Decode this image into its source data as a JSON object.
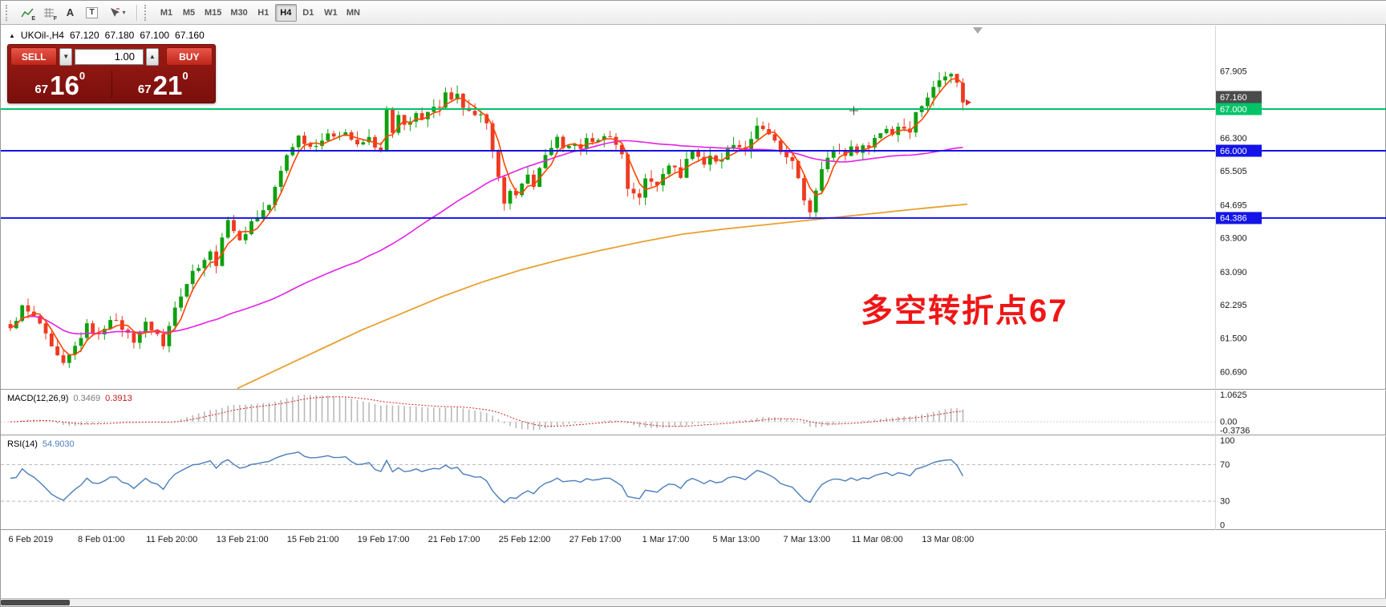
{
  "toolbar": {
    "icons": [
      {
        "name": "indicators-icon",
        "badge": "E"
      },
      {
        "name": "grid-icon",
        "badge": "F"
      },
      {
        "name": "label-icon",
        "glyph": "A"
      },
      {
        "name": "text-icon",
        "glyph": "T"
      },
      {
        "name": "line-tools-icon",
        "dropdown": "▾"
      }
    ],
    "timeframes": [
      "M1",
      "M5",
      "M15",
      "M30",
      "H1",
      "H4",
      "D1",
      "W1",
      "MN"
    ],
    "active_timeframe": "H4"
  },
  "chart_header": {
    "collapse_icon": "▲",
    "symbol": "UKOil-,H4",
    "open": "67.120",
    "high": "67.180",
    "low": "67.100",
    "close": "67.160"
  },
  "trade_panel": {
    "sell_label": "SELL",
    "buy_label": "BUY",
    "volume": "1.00",
    "volume_down_glyph": "▼",
    "volume_up_glyph": "▲",
    "sell_price_base": "67",
    "sell_price_big": "16",
    "sell_price_sup": "0",
    "buy_price_base": "67",
    "buy_price_big": "21",
    "buy_price_sup": "0"
  },
  "annotation": {
    "text": "多空转折点67",
    "color": "#f01616"
  },
  "macd_panel": {
    "name": "MACD(12,26,9)",
    "value_main": "0.3469",
    "value_signal": "0.3913",
    "axis_labels": [
      "1.0625",
      "0.00",
      "-0.3736"
    ],
    "axis_values": [
      1.0625,
      0,
      -0.3736
    ]
  },
  "rsi_panel": {
    "name": "RSI(14)",
    "value": "54.9030",
    "axis_labels": [
      "100",
      "70",
      "30",
      "0"
    ],
    "axis_values": [
      100,
      70,
      30,
      0
    ],
    "levels": [
      70,
      30
    ]
  },
  "chart_data": {
    "type": "candlestick",
    "symbol": "UKOil-",
    "timeframe": "H4",
    "last_ohlc": {
      "open": 67.12,
      "high": 67.18,
      "low": 67.1,
      "close": 67.16
    },
    "bars": 163,
    "visible_price_range": [
      60.3,
      68.95
    ],
    "close_keyframes": [
      [
        0,
        61.7
      ],
      [
        2,
        62.25
      ],
      [
        4,
        62.0
      ],
      [
        5,
        61.85
      ],
      [
        7,
        61.25
      ],
      [
        9,
        60.85
      ],
      [
        11,
        61.3
      ],
      [
        13,
        61.8
      ],
      [
        15,
        61.55
      ],
      [
        17,
        62.0
      ],
      [
        19,
        61.75
      ],
      [
        21,
        61.45
      ],
      [
        23,
        61.85
      ],
      [
        25,
        61.6
      ],
      [
        26,
        61.3
      ],
      [
        28,
        62.3
      ],
      [
        31,
        63.1
      ],
      [
        34,
        63.55
      ],
      [
        35,
        63.3
      ],
      [
        37,
        64.4
      ],
      [
        39,
        63.8
      ],
      [
        41,
        64.3
      ],
      [
        44,
        64.7
      ],
      [
        47,
        65.9
      ],
      [
        49,
        66.35
      ],
      [
        51,
        66.1
      ],
      [
        54,
        66.35
      ],
      [
        57,
        66.45
      ],
      [
        59,
        66.1
      ],
      [
        61,
        66.3
      ],
      [
        63,
        65.95
      ],
      [
        64,
        67.0
      ],
      [
        65,
        66.4
      ],
      [
        66,
        66.8
      ],
      [
        67,
        66.6
      ],
      [
        69,
        66.9
      ],
      [
        70,
        66.7
      ],
      [
        71,
        66.9
      ],
      [
        73,
        67.1
      ],
      [
        74,
        67.45
      ],
      [
        75,
        67.2
      ],
      [
        76,
        67.4
      ],
      [
        77,
        67.0
      ],
      [
        79,
        66.8
      ],
      [
        80,
        66.9
      ],
      [
        81,
        66.6
      ],
      [
        83,
        65.3
      ],
      [
        84,
        64.8
      ],
      [
        85,
        65.1
      ],
      [
        86,
        64.9
      ],
      [
        88,
        65.4
      ],
      [
        89,
        65.2
      ],
      [
        91,
        65.9
      ],
      [
        93,
        66.3
      ],
      [
        94,
        66.0
      ],
      [
        96,
        66.2
      ],
      [
        97,
        66.0
      ],
      [
        98,
        66.3
      ],
      [
        100,
        66.2
      ],
      [
        101,
        66.4
      ],
      [
        103,
        66.2
      ],
      [
        104,
        65.9
      ],
      [
        105,
        65.1
      ],
      [
        107,
        64.9
      ],
      [
        108,
        65.3
      ],
      [
        110,
        65.2
      ],
      [
        111,
        65.5
      ],
      [
        112,
        65.7
      ],
      [
        114,
        65.4
      ],
      [
        115,
        65.8
      ],
      [
        116,
        66.0
      ],
      [
        118,
        65.7
      ],
      [
        119,
        65.9
      ],
      [
        120,
        65.7
      ],
      [
        122,
        66.0
      ],
      [
        123,
        66.2
      ],
      [
        125,
        66.0
      ],
      [
        126,
        66.3
      ],
      [
        127,
        66.55
      ],
      [
        129,
        66.4
      ],
      [
        130,
        66.2
      ],
      [
        131,
        65.9
      ],
      [
        133,
        65.8
      ],
      [
        134,
        65.3
      ],
      [
        135,
        64.75
      ],
      [
        136,
        64.55
      ],
      [
        138,
        65.6
      ],
      [
        139,
        65.9
      ],
      [
        140,
        66.0
      ],
      [
        142,
        65.9
      ],
      [
        143,
        66.1
      ],
      [
        144,
        66.0
      ],
      [
        146,
        66.15
      ],
      [
        147,
        66.3
      ],
      [
        149,
        66.55
      ],
      [
        150,
        66.4
      ],
      [
        151,
        66.6
      ],
      [
        153,
        66.5
      ],
      [
        154,
        66.9
      ],
      [
        155,
        67.1
      ],
      [
        157,
        67.5
      ],
      [
        158,
        67.7
      ],
      [
        159,
        67.85
      ],
      [
        160,
        67.9
      ],
      [
        161,
        67.6
      ],
      [
        162,
        67.16
      ]
    ],
    "price_axis_labels": [
      67.905,
      66.3,
      65.505,
      64.695,
      63.9,
      63.09,
      62.295,
      61.5,
      60.69
    ],
    "price_tags": [
      {
        "label": "67.160",
        "value": 67.16,
        "bg": "#4b4b4b"
      },
      {
        "label": "67.000",
        "value": 67.0,
        "bg": "#00c368"
      },
      {
        "label": "66.000",
        "value": 66.0,
        "bg": "#1414e8"
      },
      {
        "label": "64.386",
        "value": 64.386,
        "bg": "#1414e8"
      }
    ],
    "hlines": [
      {
        "value": 67.0,
        "color": "#00c368"
      },
      {
        "value": 66.0,
        "color": "#1414e8"
      },
      {
        "value": 64.386,
        "color": "#1414e8"
      }
    ],
    "time_labels": [
      "6 Feb 2019",
      "8 Feb 01:00",
      "11 Feb 20:00",
      "13 Feb 21:00",
      "15 Feb 21:00",
      "19 Feb 17:00",
      "21 Feb 17:00",
      "25 Feb 12:00",
      "27 Feb 17:00",
      "1 Mar 17:00",
      "5 Mar 13:00",
      "7 Mar 13:00",
      "11 Mar 08:00",
      "13 Mar 08:00"
    ],
    "moving_averages": [
      {
        "name": "fast",
        "period": 4,
        "color": "#ff4500"
      },
      {
        "name": "mid",
        "period": 60,
        "color": "#e521e5"
      }
    ],
    "ma_slow": {
      "color": "#e8a030",
      "points": [
        [
          295,
          60.3
        ],
        [
          350,
          60.8
        ],
        [
          400,
          61.25
        ],
        [
          450,
          61.7
        ],
        [
          500,
          62.1
        ],
        [
          550,
          62.5
        ],
        [
          600,
          62.85
        ],
        [
          650,
          63.15
        ],
        [
          700,
          63.4
        ],
        [
          750,
          63.62
        ],
        [
          800,
          63.82
        ],
        [
          850,
          64.0
        ],
        [
          900,
          64.12
        ],
        [
          950,
          64.22
        ],
        [
          1000,
          64.32
        ],
        [
          1050,
          64.42
        ],
        [
          1100,
          64.52
        ],
        [
          1150,
          64.62
        ],
        [
          1205,
          64.72
        ]
      ]
    },
    "macd": {
      "fast": 12,
      "slow": 26,
      "signal": 9,
      "range": [
        -0.45,
        1.1
      ],
      "hist_color": "#b9b9b9",
      "signal_color": "#d42222"
    },
    "rsi": {
      "period": 14,
      "color": "#4a7ebb",
      "range": [
        0,
        100
      ]
    },
    "colors": {
      "up": "#0fa00f",
      "down": "#ee3a22",
      "background": "#ffffff"
    }
  }
}
